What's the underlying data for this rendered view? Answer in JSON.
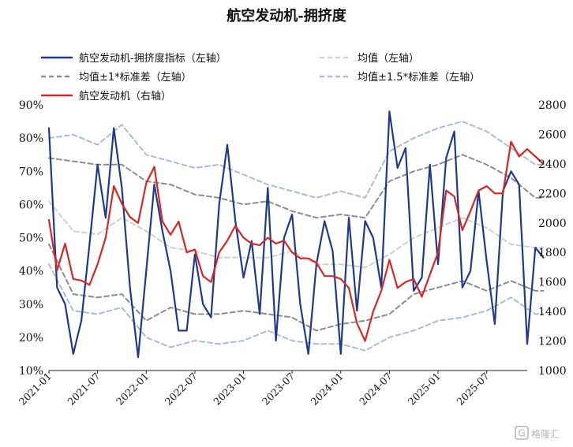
{
  "chart_data": {
    "type": "line",
    "title": "航空发动机-拥挤度",
    "x_ticks": [
      "2021-01",
      "2021-07",
      "2022-01",
      "2022-07",
      "2023-01",
      "2023-07",
      "2024-01",
      "2024-07",
      "2025-01",
      "2025-07"
    ],
    "x_range": [
      "2021-01",
      "2025-12"
    ],
    "y_left": {
      "min": 10,
      "max": 90,
      "step": 10,
      "unit": "%",
      "tick_labels": [
        "10%",
        "20%",
        "30%",
        "40%",
        "50%",
        "60%",
        "70%",
        "80%",
        "90%"
      ]
    },
    "y_right": {
      "min": 1000,
      "max": 2800,
      "step": 200,
      "tick_labels": [
        "1000",
        "1200",
        "1400",
        "1600",
        "1800",
        "2000",
        "2200",
        "2400",
        "2600",
        "2800"
      ]
    },
    "grid": false,
    "legend_placement": "top",
    "series": [
      {
        "name": "航空发动机-拥挤度指标（左轴）",
        "axis": "left",
        "color": "#1f3a8a",
        "style": "solid",
        "points": [
          [
            "2021-01",
            83
          ],
          [
            "2021-02",
            35
          ],
          [
            "2021-03",
            30
          ],
          [
            "2021-04",
            15
          ],
          [
            "2021-05",
            25
          ],
          [
            "2021-06",
            48
          ],
          [
            "2021-07",
            72
          ],
          [
            "2021-08",
            56
          ],
          [
            "2021-09",
            83
          ],
          [
            "2021-10",
            65
          ],
          [
            "2021-11",
            35
          ],
          [
            "2021-12",
            14
          ],
          [
            "2022-01",
            40
          ],
          [
            "2022-02",
            66
          ],
          [
            "2022-03",
            52
          ],
          [
            "2022-04",
            40
          ],
          [
            "2022-05",
            22
          ],
          [
            "2022-06",
            22
          ],
          [
            "2022-07",
            45
          ],
          [
            "2022-08",
            30
          ],
          [
            "2022-09",
            26
          ],
          [
            "2022-10",
            60
          ],
          [
            "2022-11",
            78
          ],
          [
            "2022-12",
            55
          ],
          [
            "2023-01",
            38
          ],
          [
            "2023-02",
            49
          ],
          [
            "2023-03",
            27
          ],
          [
            "2023-04",
            65
          ],
          [
            "2023-05",
            19
          ],
          [
            "2023-06",
            50
          ],
          [
            "2023-07",
            57
          ],
          [
            "2023-08",
            30
          ],
          [
            "2023-09",
            15
          ],
          [
            "2023-10",
            42
          ],
          [
            "2023-11",
            55
          ],
          [
            "2023-12",
            46
          ],
          [
            "2024-01",
            15
          ],
          [
            "2024-02",
            56
          ],
          [
            "2024-03",
            28
          ],
          [
            "2024-04",
            55
          ],
          [
            "2024-05",
            50
          ],
          [
            "2024-06",
            35
          ],
          [
            "2024-07",
            88
          ],
          [
            "2024-08",
            71
          ],
          [
            "2024-09",
            77
          ],
          [
            "2024-10",
            34
          ],
          [
            "2024-11",
            38
          ],
          [
            "2024-12",
            72
          ],
          [
            "2025-01",
            42
          ],
          [
            "2025-02",
            74
          ],
          [
            "2025-03",
            82
          ],
          [
            "2025-04",
            35
          ],
          [
            "2025-05",
            40
          ],
          [
            "2025-06",
            64
          ],
          [
            "2025-07",
            43
          ],
          [
            "2025-08",
            24
          ],
          [
            "2025-09",
            64
          ],
          [
            "2025-10",
            70
          ],
          [
            "2025-11",
            66
          ],
          [
            "2025-12",
            18
          ],
          [
            "2026-01",
            47
          ],
          [
            "2026-02",
            44
          ]
        ]
      },
      {
        "name": "均值（左轴）",
        "axis": "left",
        "color": "#d0d0d0",
        "style": "dashed",
        "points": [
          [
            "2021-01",
            61
          ],
          [
            "2021-04",
            52
          ],
          [
            "2021-07",
            51
          ],
          [
            "2021-10",
            56
          ],
          [
            "2022-01",
            52
          ],
          [
            "2022-04",
            47
          ],
          [
            "2022-07",
            46
          ],
          [
            "2022-10",
            44
          ],
          [
            "2023-01",
            44
          ],
          [
            "2023-04",
            44
          ],
          [
            "2023-07",
            46
          ],
          [
            "2023-10",
            42
          ],
          [
            "2024-01",
            42
          ],
          [
            "2024-04",
            41
          ],
          [
            "2024-07",
            45
          ],
          [
            "2024-10",
            50
          ],
          [
            "2025-01",
            53
          ],
          [
            "2025-04",
            56
          ],
          [
            "2025-07",
            53
          ],
          [
            "2025-10",
            48
          ],
          [
            "2026-01",
            47
          ],
          [
            "2026-02",
            47
          ]
        ]
      },
      {
        "name": "均值±1*标准差（左轴）",
        "axis": "left",
        "color": "#8c8c8c",
        "style": "dashed",
        "points": [
          [
            "2021-01",
            74
          ],
          [
            "2021-04",
            73
          ],
          [
            "2021-07",
            72
          ],
          [
            "2021-10",
            72
          ],
          [
            "2022-01",
            67
          ],
          [
            "2022-04",
            66
          ],
          [
            "2022-07",
            63
          ],
          [
            "2022-10",
            62
          ],
          [
            "2023-01",
            60
          ],
          [
            "2023-04",
            61
          ],
          [
            "2023-07",
            58
          ],
          [
            "2023-10",
            56
          ],
          [
            "2024-01",
            57
          ],
          [
            "2024-04",
            56
          ],
          [
            "2024-07",
            67
          ],
          [
            "2024-10",
            70
          ],
          [
            "2025-01",
            72
          ],
          [
            "2025-04",
            75
          ],
          [
            "2025-07",
            72
          ],
          [
            "2025-10",
            68
          ],
          [
            "2026-01",
            62
          ],
          [
            "2026-02",
            62
          ]
        ]
      },
      {
        "name": "均值±1*标准差（左轴）-lower",
        "axis": "left",
        "color": "#8c8c8c",
        "style": "dashed",
        "points": [
          [
            "2021-01",
            48
          ],
          [
            "2021-04",
            33
          ],
          [
            "2021-07",
            32
          ],
          [
            "2021-10",
            33
          ],
          [
            "2022-01",
            25
          ],
          [
            "2022-04",
            29
          ],
          [
            "2022-07",
            27
          ],
          [
            "2022-10",
            27
          ],
          [
            "2023-01",
            28
          ],
          [
            "2023-04",
            27
          ],
          [
            "2023-07",
            26
          ],
          [
            "2023-10",
            22
          ],
          [
            "2024-01",
            24
          ],
          [
            "2024-04",
            25
          ],
          [
            "2024-07",
            27
          ],
          [
            "2024-10",
            33
          ],
          [
            "2025-01",
            35
          ],
          [
            "2025-04",
            37
          ],
          [
            "2025-07",
            34
          ],
          [
            "2025-10",
            37
          ],
          [
            "2026-01",
            34
          ],
          [
            "2026-02",
            34
          ]
        ]
      },
      {
        "name": "均值±1.5*标准差（左轴）",
        "axis": "left",
        "color": "#aabbd8",
        "style": "dashed",
        "points": [
          [
            "2021-01",
            80
          ],
          [
            "2021-04",
            81
          ],
          [
            "2021-07",
            78
          ],
          [
            "2021-10",
            84
          ],
          [
            "2022-01",
            75
          ],
          [
            "2022-04",
            73
          ],
          [
            "2022-07",
            71
          ],
          [
            "2022-10",
            72
          ],
          [
            "2023-01",
            69
          ],
          [
            "2023-04",
            66
          ],
          [
            "2023-07",
            64
          ],
          [
            "2023-10",
            62
          ],
          [
            "2024-01",
            64
          ],
          [
            "2024-04",
            62
          ],
          [
            "2024-07",
            76
          ],
          [
            "2024-10",
            80
          ],
          [
            "2025-01",
            83
          ],
          [
            "2025-04",
            85
          ],
          [
            "2025-07",
            82
          ],
          [
            "2025-10",
            77
          ],
          [
            "2026-01",
            72
          ],
          [
            "2026-02",
            72
          ]
        ]
      },
      {
        "name": "均值±1.5*标准差（左轴）-lower",
        "axis": "left",
        "color": "#aabbd8",
        "style": "dashed",
        "points": [
          [
            "2021-01",
            42
          ],
          [
            "2021-04",
            28
          ],
          [
            "2021-07",
            27
          ],
          [
            "2021-10",
            29
          ],
          [
            "2022-01",
            20
          ],
          [
            "2022-04",
            17
          ],
          [
            "2022-07",
            19
          ],
          [
            "2022-10",
            18
          ],
          [
            "2023-01",
            19
          ],
          [
            "2023-04",
            22
          ],
          [
            "2023-07",
            19
          ],
          [
            "2023-10",
            18
          ],
          [
            "2024-01",
            18
          ],
          [
            "2024-04",
            16
          ],
          [
            "2024-07",
            20
          ],
          [
            "2024-10",
            22
          ],
          [
            "2025-01",
            25
          ],
          [
            "2025-04",
            26
          ],
          [
            "2025-07",
            28
          ],
          [
            "2025-10",
            32
          ],
          [
            "2026-01",
            27
          ],
          [
            "2026-02",
            27
          ]
        ]
      },
      {
        "name": "航空发动机（右轴）",
        "axis": "right",
        "color": "#d62728",
        "style": "solid",
        "points": [
          [
            "2021-01",
            2020
          ],
          [
            "2021-02",
            1680
          ],
          [
            "2021-03",
            1860
          ],
          [
            "2021-04",
            1620
          ],
          [
            "2021-05",
            1610
          ],
          [
            "2021-06",
            1580
          ],
          [
            "2021-07",
            1720
          ],
          [
            "2021-08",
            1900
          ],
          [
            "2021-09",
            2250
          ],
          [
            "2021-10",
            2130
          ],
          [
            "2021-11",
            2040
          ],
          [
            "2021-12",
            2000
          ],
          [
            "2022-01",
            2270
          ],
          [
            "2022-02",
            2380
          ],
          [
            "2022-03",
            2010
          ],
          [
            "2022-04",
            1920
          ],
          [
            "2022-05",
            2010
          ],
          [
            "2022-06",
            1800
          ],
          [
            "2022-07",
            1820
          ],
          [
            "2022-08",
            1640
          ],
          [
            "2022-09",
            1600
          ],
          [
            "2022-10",
            1800
          ],
          [
            "2022-11",
            1880
          ],
          [
            "2022-12",
            1980
          ],
          [
            "2023-01",
            1900
          ],
          [
            "2023-02",
            1860
          ],
          [
            "2023-03",
            1850
          ],
          [
            "2023-04",
            1900
          ],
          [
            "2023-05",
            1860
          ],
          [
            "2023-06",
            1880
          ],
          [
            "2023-07",
            1800
          ],
          [
            "2023-08",
            1760
          ],
          [
            "2023-09",
            1760
          ],
          [
            "2023-10",
            1730
          ],
          [
            "2023-11",
            1640
          ],
          [
            "2023-12",
            1640
          ],
          [
            "2024-01",
            1620
          ],
          [
            "2024-02",
            1560
          ],
          [
            "2024-03",
            1320
          ],
          [
            "2024-04",
            1200
          ],
          [
            "2024-05",
            1400
          ],
          [
            "2024-06",
            1540
          ],
          [
            "2024-07",
            1750
          ],
          [
            "2024-08",
            1560
          ],
          [
            "2024-09",
            1600
          ],
          [
            "2024-10",
            1620
          ],
          [
            "2024-11",
            1500
          ],
          [
            "2024-12",
            1650
          ],
          [
            "2025-01",
            1800
          ],
          [
            "2025-02",
            2220
          ],
          [
            "2025-03",
            2180
          ],
          [
            "2025-04",
            1950
          ],
          [
            "2025-05",
            2080
          ],
          [
            "2025-06",
            2220
          ],
          [
            "2025-07",
            2250
          ],
          [
            "2025-08",
            2200
          ],
          [
            "2025-09",
            2200
          ],
          [
            "2025-10",
            2550
          ],
          [
            "2025-11",
            2450
          ],
          [
            "2025-12",
            2500
          ],
          [
            "2026-01",
            2450
          ],
          [
            "2026-02",
            2400
          ]
        ]
      }
    ],
    "legend": [
      {
        "label": "航空发动机-拥挤度指标（左轴）",
        "color": "#1f3a8a",
        "style": "solid"
      },
      {
        "label": "均值（左轴）",
        "color": "#d0d0d0",
        "style": "dashed"
      },
      {
        "label": "均值±1*标准差（左轴）",
        "color": "#8c8c8c",
        "style": "dashed"
      },
      {
        "label": "均值±1.5*标准差（左轴）",
        "color": "#aabbd8",
        "style": "dashed"
      },
      {
        "label": "航空发动机（右轴）",
        "color": "#d62728",
        "style": "solid"
      }
    ]
  },
  "watermark": {
    "text": "格隆汇",
    "icon": "logo-g-icon"
  }
}
